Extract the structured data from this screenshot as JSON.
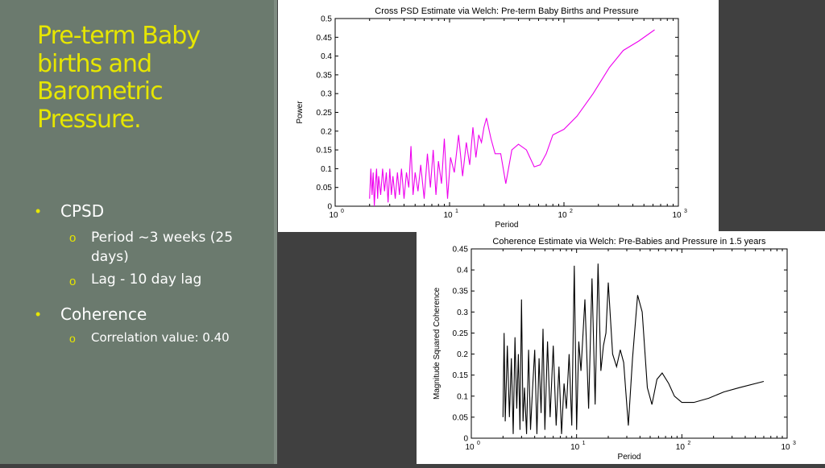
{
  "slide": {
    "title_lines": [
      "Pre-term Baby",
      "births and",
      "Barometric",
      "Pressure."
    ],
    "bullets": {
      "b1": "CPSD",
      "b1_sub1_line1": "Period ~3 weeks (25",
      "b1_sub1_line2": "days)",
      "b1_sub2": "Lag - 10 day lag",
      "b2": "Coherence",
      "b2_sub1": "Correlation value: 0.40"
    },
    "bullet_symbol": "•",
    "sub_symbol": "o"
  },
  "colors": {
    "background": "#404040",
    "left_panel": "#6b7a6e",
    "title": "#e6e600",
    "body_text": "#ffffff",
    "cpsd_line": "#ee00ee",
    "coherence_line": "#000000"
  },
  "chart_data": [
    {
      "type": "line",
      "title": "Cross PSD Estimate via Welch: Pre-term Baby Births and Pressure",
      "xlabel": "Period",
      "ylabel": "Power",
      "x_scale": "log",
      "xlim": [
        1,
        1000
      ],
      "ylim": [
        0,
        0.5
      ],
      "x_tick_labels": [
        "10",
        "10",
        "10",
        "10"
      ],
      "x_tick_exponents": [
        "0",
        "1",
        "2",
        "3"
      ],
      "y_ticks": [
        "0",
        "0.05",
        "0.1",
        "0.15",
        "0.2",
        "0.25",
        "0.3",
        "0.35",
        "0.4",
        "0.45",
        "0.5"
      ],
      "grid": false,
      "legend": "none",
      "series": [
        {
          "color": "#ee00ee",
          "x": [
            2,
            2.05,
            2.1,
            2.15,
            2.2,
            2.25,
            2.3,
            2.35,
            2.4,
            2.5,
            2.6,
            2.7,
            2.8,
            2.9,
            3.0,
            3.1,
            3.2,
            3.35,
            3.5,
            3.65,
            3.8,
            4.0,
            4.2,
            4.4,
            4.6,
            4.8,
            5.0,
            5.3,
            5.6,
            6.0,
            6.4,
            6.8,
            7.2,
            7.6,
            8.0,
            8.5,
            9.0,
            9.6,
            10.2,
            11,
            12,
            13,
            14,
            15,
            16,
            17,
            18,
            19,
            20,
            21,
            23,
            25,
            28,
            31,
            35,
            40,
            47,
            55,
            62,
            70,
            80,
            100,
            130,
            180,
            250,
            330,
            450,
            620
          ],
          "y": [
            0.02,
            0.1,
            0.03,
            0.09,
            0.0,
            0.06,
            0.1,
            0.02,
            0.08,
            0.03,
            0.1,
            0.04,
            0.09,
            0.01,
            0.1,
            0.03,
            0.08,
            0.02,
            0.09,
            0.03,
            0.1,
            0.02,
            0.09,
            0.05,
            0.16,
            0.03,
            0.09,
            0.04,
            0.11,
            0.02,
            0.14,
            0.05,
            0.15,
            0.03,
            0.12,
            0.06,
            0.18,
            0.02,
            0.13,
            0.09,
            0.19,
            0.08,
            0.17,
            0.11,
            0.21,
            0.13,
            0.19,
            0.17,
            0.21,
            0.235,
            0.18,
            0.14,
            0.14,
            0.06,
            0.15,
            0.165,
            0.15,
            0.105,
            0.11,
            0.14,
            0.19,
            0.205,
            0.24,
            0.3,
            0.37,
            0.415,
            0.44,
            0.47
          ]
        }
      ]
    },
    {
      "type": "line",
      "title": "Coherence Estimate via Welch: Pre-Babies and Pressure in 1.5 years",
      "xlabel": "Period",
      "ylabel": "Magnitude Squared Coherence",
      "x_scale": "log",
      "xlim": [
        1,
        1000
      ],
      "ylim": [
        0,
        0.45
      ],
      "x_tick_labels": [
        "10",
        "10",
        "10",
        "10"
      ],
      "x_tick_exponents": [
        "0",
        "1",
        "2",
        "3"
      ],
      "y_ticks": [
        "0",
        "0.05",
        "0.1",
        "0.15",
        "0.2",
        "0.25",
        "0.3",
        "0.35",
        "0.4",
        "0.45"
      ],
      "grid": false,
      "legend": "none",
      "series": [
        {
          "color": "#000000",
          "x": [
            2,
            2.05,
            2.1,
            2.2,
            2.3,
            2.4,
            2.5,
            2.6,
            2.7,
            2.8,
            2.9,
            3.0,
            3.1,
            3.2,
            3.35,
            3.5,
            3.65,
            3.8,
            4.0,
            4.2,
            4.4,
            4.6,
            4.8,
            5.0,
            5.3,
            5.6,
            6.0,
            6.4,
            6.8,
            7.2,
            7.6,
            8.0,
            8.5,
            9.0,
            9.5,
            10,
            10.5,
            11,
            12,
            13,
            14,
            15,
            16,
            17,
            18,
            19,
            20,
            22,
            24,
            26,
            28,
            31,
            34,
            38,
            42,
            47,
            52,
            58,
            65,
            75,
            85,
            100,
            130,
            180,
            250,
            350,
            600
          ],
          "y": [
            0.05,
            0.25,
            0.04,
            0.22,
            0.05,
            0.19,
            0.01,
            0.24,
            0.07,
            0.2,
            0.02,
            0.33,
            0.04,
            0.12,
            0.01,
            0.21,
            0.02,
            0.11,
            0.21,
            0.01,
            0.19,
            0.06,
            0.26,
            0.02,
            0.23,
            0.05,
            0.22,
            0.03,
            0.17,
            0.01,
            0.13,
            0.07,
            0.2,
            0.03,
            0.41,
            0.02,
            0.23,
            0.16,
            0.33,
            0.07,
            0.38,
            0.08,
            0.415,
            0.16,
            0.22,
            0.25,
            0.37,
            0.2,
            0.17,
            0.21,
            0.18,
            0.03,
            0.19,
            0.34,
            0.3,
            0.12,
            0.08,
            0.14,
            0.155,
            0.13,
            0.1,
            0.085,
            0.085,
            0.095,
            0.11,
            0.12,
            0.135
          ]
        }
      ]
    }
  ]
}
